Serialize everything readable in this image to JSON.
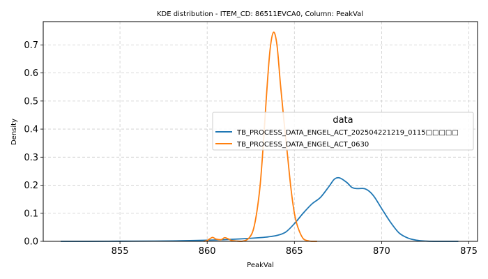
{
  "chart_data": {
    "type": "line",
    "title": "KDE distribution - ITEM_CD: 86511EVCA0, Column: PeakVal",
    "xlabel": "PeakVal",
    "ylabel": "Density",
    "xlim": [
      850.6,
      875.5
    ],
    "ylim": [
      0,
      0.783
    ],
    "x_ticks": [
      855,
      860,
      865,
      870,
      875
    ],
    "y_ticks": [
      0.0,
      0.1,
      0.2,
      0.3,
      0.4,
      0.5,
      0.6,
      0.7
    ],
    "grid": true,
    "legend": {
      "title": "data",
      "placement": "center-right"
    },
    "series": [
      {
        "name": "TB_PROCESS_DATA_ENGEL_ACT_202504221219_0115□□□□□",
        "color": "#1f77b4",
        "x": [
          851.6,
          853,
          855,
          857,
          858.5,
          860,
          861,
          862,
          863,
          863.5,
          864,
          864.5,
          865,
          865.5,
          866,
          866.5,
          867,
          867.3,
          867.6,
          868,
          868.3,
          868.6,
          869,
          869.3,
          869.6,
          870,
          870.5,
          871,
          871.5,
          872,
          872.5,
          873,
          874.4
        ],
        "values": [
          0.0,
          0.0,
          0.0005,
          0.001,
          0.002,
          0.004,
          0.006,
          0.009,
          0.013,
          0.016,
          0.021,
          0.033,
          0.063,
          0.1,
          0.133,
          0.157,
          0.197,
          0.222,
          0.226,
          0.21,
          0.192,
          0.188,
          0.188,
          0.178,
          0.157,
          0.117,
          0.069,
          0.03,
          0.012,
          0.004,
          0.001,
          0.0,
          0.0
        ]
      },
      {
        "name": "TB_PROCESS_DATA_ENGEL_ACT_0630",
        "color": "#ff7f0e",
        "x": [
          859.8,
          860,
          860.3,
          860.5,
          860.8,
          861.0,
          861.2,
          861.4,
          861.7,
          862,
          862.4,
          862.7,
          863,
          863.2,
          863.4,
          863.6,
          863.8,
          864,
          864.2,
          864.4,
          864.6,
          864.8,
          865,
          865.2,
          865.5,
          865.8,
          866,
          866.3
        ],
        "values": [
          0.0,
          0.003,
          0.014,
          0.008,
          0.006,
          0.013,
          0.009,
          0.003,
          0.001,
          0.0,
          0.012,
          0.055,
          0.178,
          0.33,
          0.52,
          0.68,
          0.745,
          0.7,
          0.56,
          0.43,
          0.31,
          0.19,
          0.1,
          0.05,
          0.01,
          0.002,
          0.0,
          0.0
        ]
      }
    ]
  }
}
